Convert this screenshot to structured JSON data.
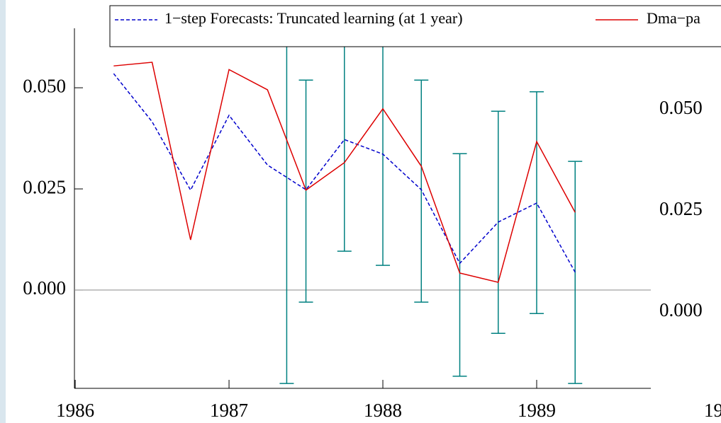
{
  "chart_data": [
    {
      "type": "line",
      "x": [
        1986.25,
        1986.5,
        1986.75,
        1987,
        1987.25,
        1987.5,
        1987.75,
        1988,
        1988.25,
        1988.5,
        1988.75,
        1989,
        1989.25
      ],
      "series": [
        {
          "name": "1−step Forecasts: Truncated learning (at 1 year)",
          "color": "#0000cc",
          "dash": true,
          "values": [
            0.0535,
            0.0416,
            0.0247,
            0.0432,
            0.0309,
            0.0248,
            0.0372,
            0.0336,
            0.0248,
            0.0066,
            0.0168,
            0.0215,
            0.0044
          ]
        },
        {
          "name": "Dma−pa",
          "color": "#dd0000",
          "dash": false,
          "values": [
            0.0554,
            0.0563,
            0.0124,
            0.0545,
            0.0495,
            0.0247,
            0.0315,
            0.0448,
            0.0306,
            0.0042,
            0.0019,
            0.0367,
            0.0192
          ]
        }
      ],
      "error_bars": {
        "color": "#008080",
        "x": [
          1987.375,
          1987.5,
          1987.75,
          1988,
          1988.25,
          1988.5,
          1988.75,
          1989,
          1989.25
        ],
        "low": [
          -0.0231,
          -0.003,
          0.0096,
          0.0061,
          -0.003,
          -0.0213,
          -0.0107,
          -0.0058,
          -0.0231
        ],
        "high": [
          0.0643,
          0.0519,
          0.0645,
          0.0608,
          0.0519,
          0.0337,
          0.0442,
          0.049,
          0.0318
        ]
      },
      "xlim": [
        1985.995,
        1989.742
      ],
      "xticks": [
        1986,
        1987,
        1988,
        1989
      ],
      "ylim": [
        -0.0243,
        0.0647
      ],
      "yticks": [
        {
          "value": 0,
          "label": "0.000"
        },
        0.025,
        {
          "value": 0.05,
          "label": "0.050"
        }
      ],
      "zero_line": true,
      "legend": "top"
    },
    {
      "type": "line",
      "xlim": [
        1986,
        1989.742
      ],
      "xticks": [
        1986
      ],
      "ylim": [
        -0.0189,
        0.0701
      ],
      "yticks": [
        {
          "value": 0,
          "label": "0.000"
        },
        0.025,
        {
          "value": 0.05,
          "label": "0.050"
        }
      ]
    }
  ]
}
